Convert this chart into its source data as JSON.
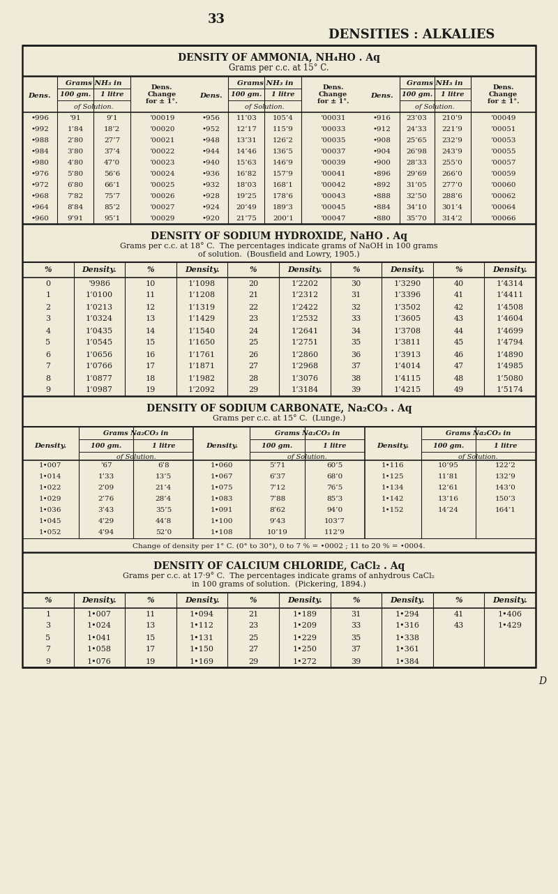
{
  "bg_color": "#f0ead8",
  "text_color": "#1a1a1a",
  "page_number": "33",
  "page_title": "DENSITIES : ALKALIES",
  "ammonia_title": "DENSITY OF AMMONIA, NH₄HO . Aq",
  "ammonia_subtitle": "Grams per c.c. at 15° C.",
  "ammonia_data": [
    [
      "•996",
      "’91",
      "9’1",
      "’00019",
      "•956",
      "11’03",
      "105’4",
      "’00031",
      "•916",
      "23’03",
      "210’9",
      "’00049"
    ],
    [
      "•992",
      "1’84",
      "18’2",
      "’00020",
      "•952",
      "12’17",
      "115’9",
      "’00033",
      "•912",
      "24’33",
      "221’9",
      "’00051"
    ],
    [
      "•988",
      "2’80",
      "27’7",
      "’00021",
      "•948",
      "13’31",
      "126’2",
      "’00035",
      "•908",
      "25’65",
      "232’9",
      "’00053"
    ],
    [
      "•984",
      "3’80",
      "37’4",
      "’00022",
      "•944",
      "14’46",
      "136’5",
      "’00037",
      "•904",
      "26’98",
      "243’9",
      "’00055"
    ],
    [
      "•980",
      "4’80",
      "47’0",
      "’00023",
      "•940",
      "15’63",
      "146’9",
      "’00039",
      "•900",
      "28’33",
      "255’0",
      "’00057"
    ],
    [
      "•976",
      "5’80",
      "56’6",
      "’00024",
      "•936",
      "16’82",
      "157’9",
      "’00041",
      "•896",
      "29’69",
      "266’0",
      "’00059"
    ],
    [
      "•972",
      "6’80",
      "66’1",
      "’00025",
      "•932",
      "18’03",
      "168’1",
      "’00042",
      "•892",
      "31’05",
      "277’0",
      "’00060"
    ],
    [
      "•968",
      "7’82",
      "75’7",
      "’00026",
      "•928",
      "19’25",
      "178’6",
      "’00043",
      "•888",
      "32’50",
      "288’6",
      "’00062"
    ],
    [
      "•964",
      "8’84",
      "85’2",
      "’00027",
      "•924",
      "20’49",
      "189’3",
      "’00045",
      "•884",
      "34’10",
      "301’4",
      "’00064"
    ],
    [
      "•960",
      "9’91",
      "95’1",
      "’00029",
      "•920",
      "21’75",
      "200’1",
      "’00047",
      "•880",
      "35’70",
      "314’2",
      "’00066"
    ]
  ],
  "naoh_title": "DENSITY OF SODIUM HYDROXIDE, NaHO . Aq",
  "naoh_line1": "Grams per c.c. at 18° C.  The percentages indicate grams of NaOH in 100 grams",
  "naoh_line2": "of solution.  (Bousfield and Lowry, 1905.)",
  "naoh_data": [
    [
      "0",
      "’9986",
      "10",
      "1’1098",
      "20",
      "1’2202",
      "30",
      "1’3290",
      "40",
      "1’4314"
    ],
    [
      "1",
      "1’0100",
      "11",
      "1’1208",
      "21",
      "1’2312",
      "31",
      "1’3396",
      "41",
      "1’4411"
    ],
    [
      "2",
      "1’0213",
      "12",
      "1’1319",
      "22",
      "1’2422",
      "32",
      "1’3502",
      "42",
      "1’4508"
    ],
    [
      "3",
      "1’0324",
      "13",
      "1’1429",
      "23",
      "1’2532",
      "33",
      "1’3605",
      "43",
      "1’4604"
    ],
    [
      "4",
      "1’0435",
      "14",
      "1’1540",
      "24",
      "1’2641",
      "34",
      "1’3708",
      "44",
      "1’4699"
    ],
    [
      "5",
      "1’0545",
      "15",
      "1’1650",
      "25",
      "1’2751",
      "35",
      "1’3811",
      "45",
      "1’4794"
    ],
    [
      "6",
      "1’0656",
      "16",
      "1’1761",
      "26",
      "1’2860",
      "36",
      "1’3913",
      "46",
      "1’4890"
    ],
    [
      "7",
      "1’0766",
      "17",
      "1’1871",
      "27",
      "1’2968",
      "37",
      "1’4014",
      "47",
      "1’4985"
    ],
    [
      "8",
      "1’0877",
      "18",
      "1’1982",
      "28",
      "1’3076",
      "38",
      "1’4115",
      "48",
      "1’5080"
    ],
    [
      "9",
      "1’0987",
      "19",
      "1’2092",
      "29",
      "1’3184",
      "39",
      "1’4215",
      "49",
      "1’5174"
    ]
  ],
  "na2co3_title": "DENSITY OF SODIUM CARBONATE, Na₂CO₃ . Aq",
  "na2co3_subtitle": "Grams per c.c. at 15° C.  (Lunge.)",
  "na2co3_data": [
    [
      "1•007",
      "’67",
      "6’8",
      "1•060",
      "5’71",
      "60’5",
      "1•116",
      "10’95",
      "122’2"
    ],
    [
      "1•014",
      "1’33",
      "13’5",
      "1•067",
      "6’37",
      "68’0",
      "1•125",
      "11’81",
      "132’9"
    ],
    [
      "1•022",
      "2’09",
      "21’4",
      "1•075",
      "7’12",
      "76’5",
      "1•134",
      "12’61",
      "143’0"
    ],
    [
      "1•029",
      "2’76",
      "28’4",
      "1•083",
      "7’88",
      "85’3",
      "1•142",
      "13’16",
      "150’3"
    ],
    [
      "1•036",
      "3’43",
      "35’5",
      "1•091",
      "8’62",
      "94’0",
      "1•152",
      "14’24",
      "164’1"
    ],
    [
      "1•045",
      "4’29",
      "44’8",
      "1•100",
      "9’43",
      "103’7",
      "",
      "",
      ""
    ],
    [
      "1•052",
      "4’94",
      "52’0",
      "1•108",
      "10’19",
      "112’9",
      "",
      "",
      ""
    ]
  ],
  "na2co3_note": "Change of density per 1° C. (0° to 30°), 0 to 7 % = •0002 ; 11 to 20 % = •0004.",
  "cacl2_title": "DENSITY OF CALCIUM CHLORIDE, CaCl₂ . Aq",
  "cacl2_line1": "Grams per c.c. at 17·9° C.  The percentages indicate grams of anhydrous CaCl₂",
  "cacl2_line2": "in 100 grams of solution.  (Pickering, 1894.)",
  "cacl2_data": [
    [
      "1",
      "1•007",
      "11",
      "1•094",
      "21",
      "1•189",
      "31",
      "1•294",
      "41",
      "1•406"
    ],
    [
      "3",
      "1•024",
      "13",
      "1•112",
      "23",
      "1•209",
      "33",
      "1•316",
      "43",
      "1•429"
    ],
    [
      "5",
      "1•041",
      "15",
      "1•131",
      "25",
      "1•229",
      "35",
      "1•338",
      "",
      ""
    ],
    [
      "7",
      "1•058",
      "17",
      "1•150",
      "27",
      "1•250",
      "37",
      "1•361",
      "",
      ""
    ],
    [
      "9",
      "1•076",
      "19",
      "1•169",
      "29",
      "1•272",
      "39",
      "1•384",
      "",
      ""
    ]
  ],
  "footer": "D"
}
